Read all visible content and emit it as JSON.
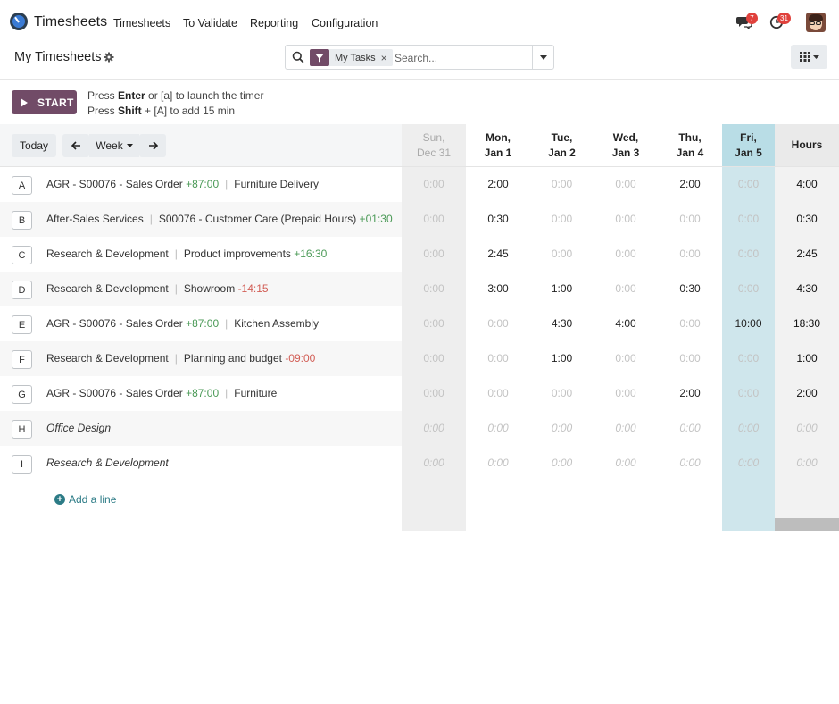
{
  "nav": {
    "app_name": "Timesheets",
    "menu": [
      "Timesheets",
      "To Validate",
      "Reporting",
      "Configuration"
    ],
    "chat_badge": "7",
    "activity_badge": "31"
  },
  "control": {
    "title": "My Timesheets",
    "facet": "My Tasks",
    "facet_remove": "×",
    "search_placeholder": "Search..."
  },
  "timer": {
    "start_label": "START",
    "hint1": {
      "pre": "Press ",
      "key1": "Enter",
      "mid": " or [a] to launch the timer"
    },
    "hint2": {
      "pre": "Press ",
      "key1": "Shift",
      "mid": " + [A] to add 15 min"
    }
  },
  "grid": {
    "today_label": "Today",
    "range_label": "Week",
    "days": [
      {
        "line1": "Sun,",
        "line2": "Dec 31"
      },
      {
        "line1": "Mon,",
        "line2": "Jan 1"
      },
      {
        "line1": "Tue,",
        "line2": "Jan 2"
      },
      {
        "line1": "Wed,",
        "line2": "Jan 3"
      },
      {
        "line1": "Thu,",
        "line2": "Jan 4"
      },
      {
        "line1": "Fri,",
        "line2": "Jan 5"
      }
    ],
    "total_header": "Hours",
    "rows": [
      {
        "letter": "A",
        "project": "AGR - S00076 - Sales Order",
        "project_delta": "+87:00",
        "project_delta_sign": "pos",
        "task": "Furniture Delivery",
        "task_delta": "",
        "task_delta_sign": "",
        "italic": false,
        "values": [
          "0:00",
          "2:00",
          "0:00",
          "0:00",
          "2:00",
          "0:00"
        ],
        "total": "4:00"
      },
      {
        "letter": "B",
        "project": "After-Sales Services",
        "project_delta": "",
        "project_delta_sign": "",
        "task": "S00076 - Customer Care (Prepaid Hours)",
        "task_delta": "+01:30",
        "task_delta_sign": "pos",
        "italic": false,
        "values": [
          "0:00",
          "0:30",
          "0:00",
          "0:00",
          "0:00",
          "0:00"
        ],
        "total": "0:30"
      },
      {
        "letter": "C",
        "project": "Research & Development",
        "project_delta": "",
        "project_delta_sign": "",
        "task": "Product improvements",
        "task_delta": "+16:30",
        "task_delta_sign": "pos",
        "italic": false,
        "values": [
          "0:00",
          "2:45",
          "0:00",
          "0:00",
          "0:00",
          "0:00"
        ],
        "total": "2:45"
      },
      {
        "letter": "D",
        "project": "Research & Development",
        "project_delta": "",
        "project_delta_sign": "",
        "task": "Showroom",
        "task_delta": "-14:15",
        "task_delta_sign": "neg",
        "italic": false,
        "values": [
          "0:00",
          "3:00",
          "1:00",
          "0:00",
          "0:30",
          "0:00"
        ],
        "total": "4:30"
      },
      {
        "letter": "E",
        "project": "AGR - S00076 - Sales Order",
        "project_delta": "+87:00",
        "project_delta_sign": "pos",
        "task": "Kitchen Assembly",
        "task_delta": "",
        "task_delta_sign": "",
        "italic": false,
        "values": [
          "0:00",
          "0:00",
          "4:30",
          "4:00",
          "0:00",
          "10:00"
        ],
        "total": "18:30"
      },
      {
        "letter": "F",
        "project": "Research & Development",
        "project_delta": "",
        "project_delta_sign": "",
        "task": "Planning and budget",
        "task_delta": "-09:00",
        "task_delta_sign": "neg",
        "italic": false,
        "values": [
          "0:00",
          "0:00",
          "1:00",
          "0:00",
          "0:00",
          "0:00"
        ],
        "total": "1:00"
      },
      {
        "letter": "G",
        "project": "AGR - S00076 - Sales Order",
        "project_delta": "+87:00",
        "project_delta_sign": "pos",
        "task": "Furniture",
        "task_delta": "",
        "task_delta_sign": "",
        "italic": false,
        "values": [
          "0:00",
          "0:00",
          "0:00",
          "0:00",
          "2:00",
          "0:00"
        ],
        "total": "2:00"
      },
      {
        "letter": "H",
        "project": "Office Design",
        "project_delta": "",
        "project_delta_sign": "",
        "task": "",
        "task_delta": "",
        "task_delta_sign": "",
        "italic": true,
        "values": [
          "0:00",
          "0:00",
          "0:00",
          "0:00",
          "0:00",
          "0:00"
        ],
        "total": "0:00"
      },
      {
        "letter": "I",
        "project": "Research & Development",
        "project_delta": "",
        "project_delta_sign": "",
        "task": "",
        "task_delta": "",
        "task_delta_sign": "",
        "italic": true,
        "values": [
          "0:00",
          "0:00",
          "0:00",
          "0:00",
          "0:00",
          "0:00"
        ],
        "total": "0:00"
      }
    ],
    "add_line_label": "Add a line"
  },
  "colors": {
    "brand": "#714b67",
    "today_column": "#cfe6ec",
    "weekend_column": "#eeeeee",
    "positive": "#4b9a57",
    "negative": "#d25e56",
    "link": "#2c7b86"
  }
}
